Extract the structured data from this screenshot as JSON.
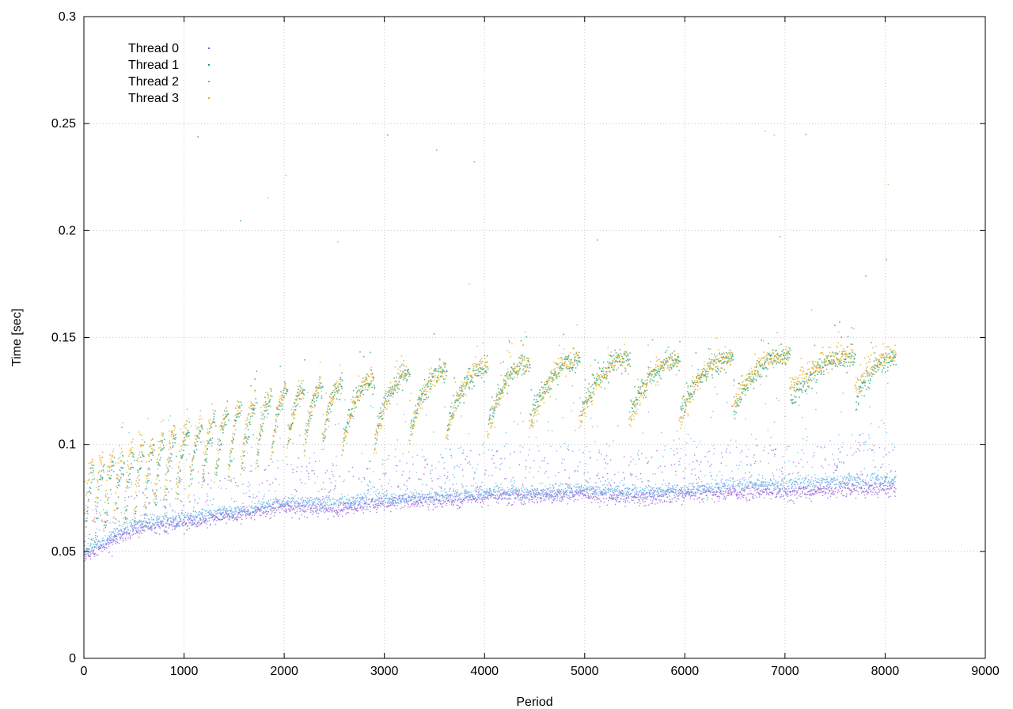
{
  "chart_data": {
    "type": "scatter",
    "title": "",
    "xlabel": "Period",
    "ylabel": "Time [sec]",
    "xlim": [
      0,
      9000
    ],
    "ylim": [
      0,
      0.3
    ],
    "x_ticks": [
      0,
      1000,
      2000,
      3000,
      4000,
      5000,
      6000,
      7000,
      8000,
      9000
    ],
    "y_ticks": [
      0,
      0.05,
      0.1,
      0.15,
      0.2,
      0.25,
      0.3
    ],
    "x_tick_labels": [
      "0",
      "1000",
      "2000",
      "3000",
      "4000",
      "5000",
      "6000",
      "7000",
      "8000",
      "9000"
    ],
    "y_tick_labels": [
      "0",
      "0.05",
      "0.1",
      "0.15",
      "0.2",
      "0.25",
      "0.3"
    ],
    "grid": true,
    "legend_position": "top-left",
    "x_range_of_data": [
      0,
      8100
    ],
    "cycle_boundaries": [
      100,
      200,
      300,
      400,
      500,
      600,
      700,
      800,
      920,
      1050,
      1180,
      1310,
      1440,
      1570,
      1720,
      1870,
      2030,
      2200,
      2380,
      2580,
      2900,
      3250,
      3620,
      4030,
      4450,
      4950,
      5450,
      5950,
      6480,
      7050,
      7700,
      8100
    ],
    "series": [
      {
        "name": "Thread 0",
        "color": "#8f56d6",
        "description_points": [
          [
            0,
            0.048
          ],
          [
            500,
            0.061
          ],
          [
            1000,
            0.064
          ],
          [
            1500,
            0.067
          ],
          [
            2000,
            0.071
          ],
          [
            2500,
            0.07
          ],
          [
            3000,
            0.073
          ],
          [
            3500,
            0.074
          ],
          [
            4000,
            0.076
          ],
          [
            4500,
            0.076
          ],
          [
            5000,
            0.077
          ],
          [
            5500,
            0.075
          ],
          [
            6000,
            0.077
          ],
          [
            6500,
            0.078
          ],
          [
            7000,
            0.078
          ],
          [
            7500,
            0.079
          ],
          [
            8100,
            0.08
          ]
        ]
      },
      {
        "name": "Thread 1",
        "color": "#1a9a72",
        "sawtooth_low_high": [
          [
            0,
            0.05,
            0.085
          ],
          [
            2000,
            0.1,
            0.125
          ],
          [
            3000,
            0.105,
            0.132
          ],
          [
            4000,
            0.11,
            0.137
          ],
          [
            5000,
            0.115,
            0.14
          ],
          [
            6000,
            0.115,
            0.14
          ],
          [
            7000,
            0.12,
            0.142
          ],
          [
            8100,
            0.12,
            0.14
          ]
        ]
      },
      {
        "name": "Thread 2",
        "color": "#5cb2e8",
        "description_points": [
          [
            0,
            0.05
          ],
          [
            500,
            0.063
          ],
          [
            1000,
            0.066
          ],
          [
            1500,
            0.069
          ],
          [
            2000,
            0.073
          ],
          [
            2500,
            0.073
          ],
          [
            3000,
            0.075
          ],
          [
            3500,
            0.076
          ],
          [
            4000,
            0.078
          ],
          [
            4500,
            0.078
          ],
          [
            5000,
            0.079
          ],
          [
            5500,
            0.078
          ],
          [
            6000,
            0.079
          ],
          [
            6500,
            0.081
          ],
          [
            7000,
            0.082
          ],
          [
            7500,
            0.083
          ],
          [
            8100,
            0.084
          ]
        ]
      },
      {
        "name": "Thread 3",
        "color": "#e6a817",
        "sawtooth_low_high": [
          [
            0,
            0.055,
            0.09
          ],
          [
            2000,
            0.095,
            0.125
          ],
          [
            3000,
            0.1,
            0.132
          ],
          [
            4000,
            0.105,
            0.137
          ],
          [
            5000,
            0.11,
            0.14
          ],
          [
            6000,
            0.11,
            0.14
          ],
          [
            7000,
            0.125,
            0.142
          ],
          [
            8100,
            0.125,
            0.142
          ]
        ]
      }
    ]
  }
}
